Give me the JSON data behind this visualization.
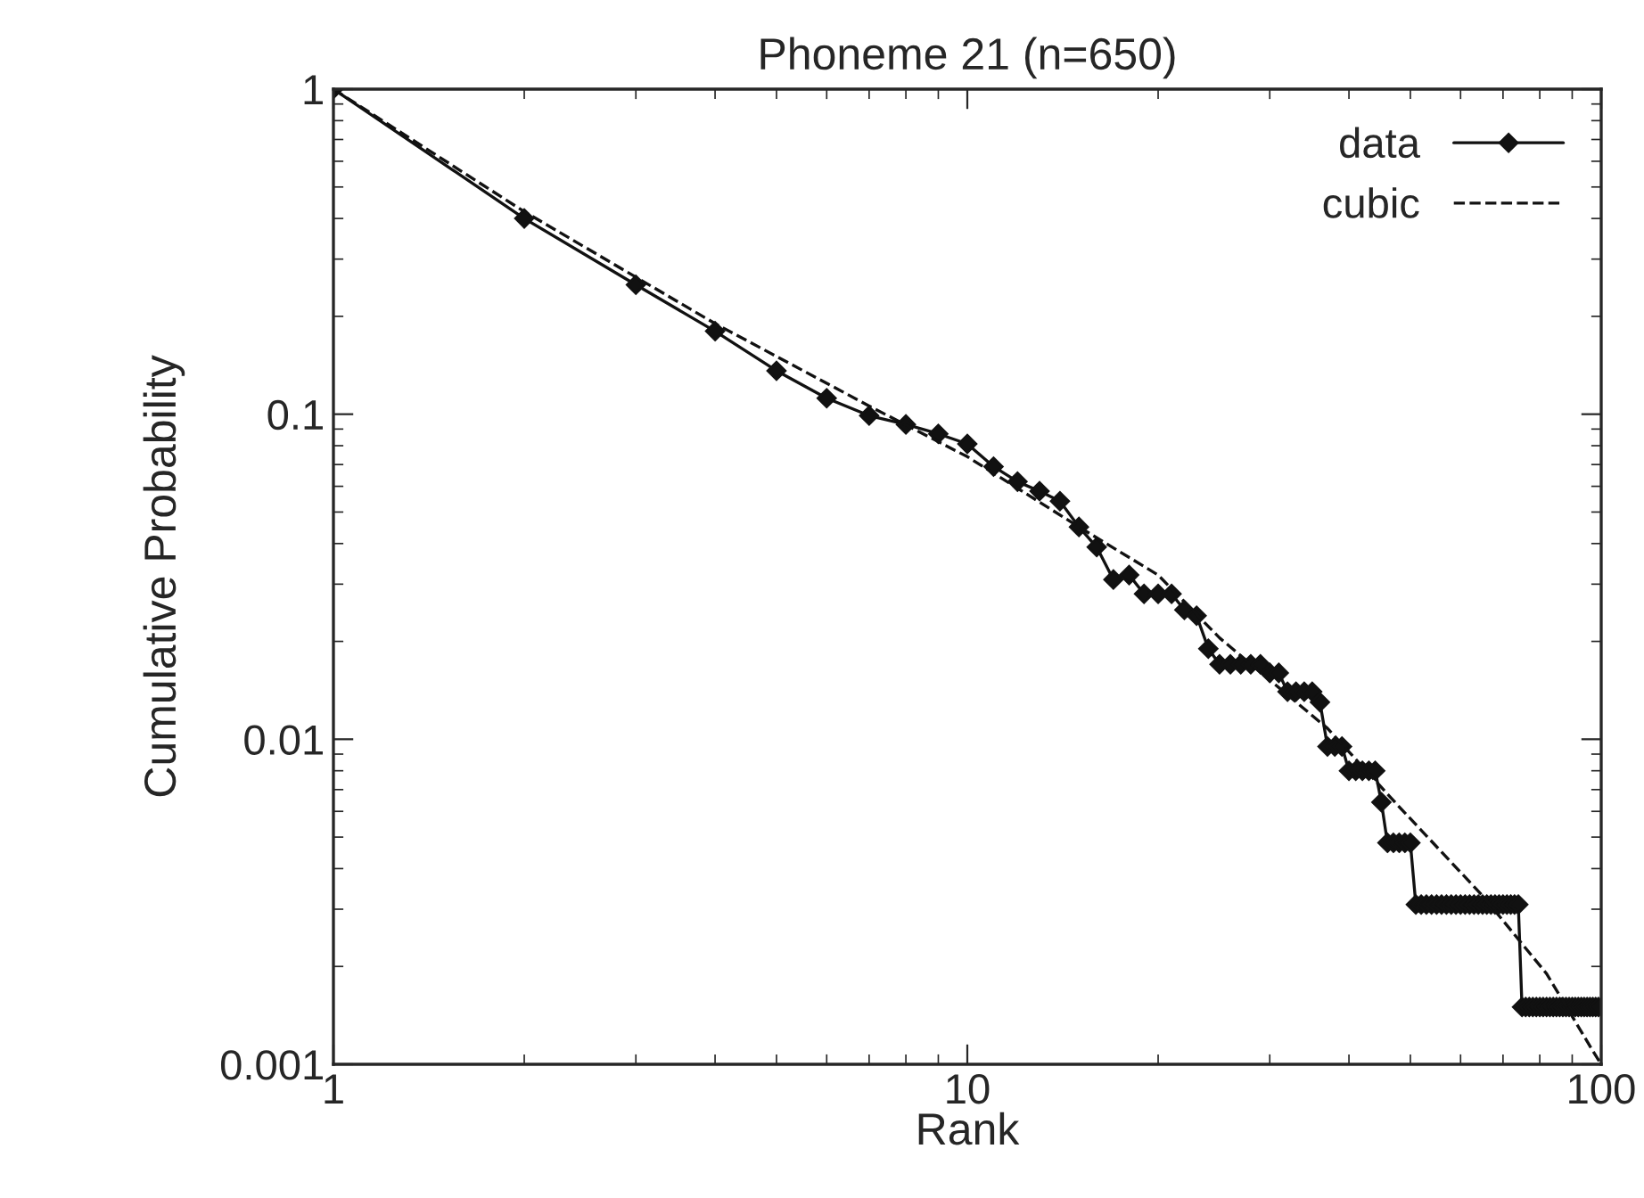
{
  "chart_data": {
    "type": "line",
    "title": "Phoneme 21 (n=650)",
    "xlabel": "Rank",
    "ylabel": "Cumulative Probability",
    "log": "xy",
    "grid": false,
    "legend": "top right",
    "xlim": [
      1,
      100
    ],
    "xticks": [
      1,
      10,
      100
    ],
    "ylim": [
      0.001,
      1
    ],
    "yticks": [
      {
        "value": 0.001,
        "label": "0.001"
      },
      {
        "value": 0.01,
        "label": "0.01"
      },
      {
        "value": 0.1,
        "label": "0.1"
      },
      {
        "value": 1,
        "label": "1"
      }
    ],
    "series": [
      {
        "name": "data",
        "color": "#111111",
        "marker": "diamond",
        "line_style": "solid",
        "x": [
          1,
          2,
          3,
          4,
          5,
          6,
          7,
          8,
          9,
          10,
          11,
          12,
          13,
          14,
          15,
          16,
          17,
          18,
          19,
          20,
          21,
          22,
          23,
          24,
          25,
          26,
          27,
          28,
          29,
          30,
          31,
          32,
          33,
          34,
          35,
          36,
          37,
          38,
          39,
          40,
          41,
          42,
          43,
          44,
          45,
          46,
          47,
          48,
          49,
          50,
          51,
          52,
          53,
          54,
          55,
          56,
          57,
          58,
          59,
          60,
          61,
          62,
          63,
          64,
          65,
          66,
          67,
          68,
          69,
          70,
          71,
          72,
          73,
          74,
          75,
          76,
          77,
          78,
          79,
          80,
          81,
          82,
          83,
          84,
          85,
          86,
          87,
          88,
          89,
          90,
          91,
          92,
          93,
          94,
          95,
          96,
          97,
          98,
          99
        ],
        "values": [
          1,
          0.4,
          0.25,
          0.18,
          0.136,
          0.112,
          0.099,
          0.093,
          0.087,
          0.081,
          0.069,
          0.062,
          0.058,
          0.054,
          0.045,
          0.039,
          0.031,
          0.032,
          0.028,
          0.028,
          0.028,
          0.025,
          0.024,
          0.019,
          0.017,
          0.017,
          0.017,
          0.017,
          0.017,
          0.016,
          0.016,
          0.014,
          0.014,
          0.014,
          0.014,
          0.013,
          0.0095,
          0.0095,
          0.0095,
          0.008,
          0.008,
          0.008,
          0.008,
          0.008,
          0.0064,
          0.0048,
          0.0048,
          0.0048,
          0.0048,
          0.0048,
          0.0031,
          0.0031,
          0.0031,
          0.0031,
          0.0031,
          0.0031,
          0.0031,
          0.0031,
          0.0031,
          0.0031,
          0.0031,
          0.0031,
          0.0031,
          0.0031,
          0.0031,
          0.0031,
          0.0031,
          0.0031,
          0.0031,
          0.0031,
          0.0031,
          0.0031,
          0.0031,
          0.0031,
          0.0015,
          0.0015,
          0.0015,
          0.0015,
          0.0015,
          0.0015,
          0.0015,
          0.0015,
          0.0015,
          0.0015,
          0.0015,
          0.0015,
          0.0015,
          0.0015,
          0.0015,
          0.0015,
          0.0015,
          0.0015,
          0.0015,
          0.0015,
          0.0015,
          0.0015,
          0.0015,
          0.0015,
          0.0015
        ]
      },
      {
        "name": "cubic",
        "color": "#111111",
        "marker": "none",
        "line_style": "dashed",
        "x": [
          1,
          2,
          4,
          7,
          10,
          15,
          20,
          25,
          37,
          48,
          65,
          82,
          97,
          100
        ],
        "values": [
          1,
          0.42,
          0.19,
          0.106,
          0.074,
          0.045,
          0.032,
          0.0205,
          0.0108,
          0.0062,
          0.0033,
          0.0019,
          0.0011,
          0.001
        ]
      }
    ]
  }
}
